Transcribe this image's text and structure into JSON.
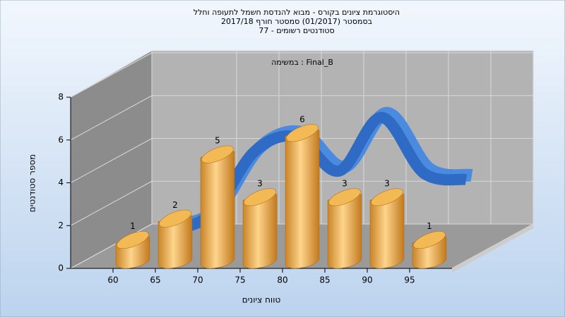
{
  "chart_data": {
    "type": "bar3d",
    "title": "היסטוגרמת ציונים בקורס - מבוא להנדסת חשמל לתעופה וחלל",
    "subtitle": "בסמסטר  (01/2017)  סמסטר חורף 2017/18",
    "subtitle2": "סטודנטים רשומים - 77",
    "annotation": "במשימה : Final_B",
    "x_label": "טווח ציונים",
    "y_label": "מספר סטודנטים",
    "categories": [
      "60",
      "65",
      "70",
      "75",
      "80",
      "85",
      "90",
      "95"
    ],
    "values": [
      1,
      2,
      5,
      3,
      6,
      3,
      3,
      1
    ],
    "color": "#e8a540",
    "line_values": [
      0.6,
      1.4,
      4.3,
      5.0,
      3.4,
      5.9,
      3.3,
      3.0
    ],
    "line_color": "#2f6bc4",
    "ylim": [
      0,
      8
    ],
    "yticks": [
      0,
      2,
      4,
      6,
      8
    ],
    "grid": true
  }
}
